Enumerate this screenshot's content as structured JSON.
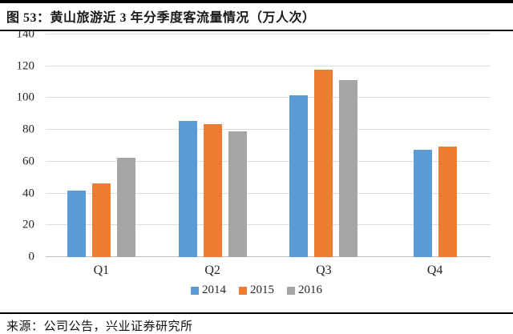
{
  "title": "图 53：黄山旅游近 3 年分季度客流量情况（万人次）",
  "source": "来源：公司公告，兴业证券研究所",
  "chart_data": {
    "type": "bar",
    "title": "黄山旅游近 3 年分季度客流量情况（万人次）",
    "categories": [
      "Q1",
      "Q2",
      "Q3",
      "Q4"
    ],
    "series": [
      {
        "name": "2014",
        "color": "#5B9BD5",
        "values": [
          42,
          85.5,
          101.5,
          67.5
        ]
      },
      {
        "name": "2015",
        "color": "#ED7D31",
        "values": [
          46.5,
          83.5,
          118,
          69.5
        ]
      },
      {
        "name": "2016",
        "color": "#A5A5A5",
        "values": [
          62.5,
          79,
          111.5,
          null
        ]
      }
    ],
    "ylim": [
      0,
      140
    ],
    "yticks": [
      0,
      20,
      40,
      60,
      80,
      100,
      120,
      140
    ],
    "xlabel": "",
    "ylabel": "",
    "grid": true,
    "legend_position": "bottom"
  }
}
